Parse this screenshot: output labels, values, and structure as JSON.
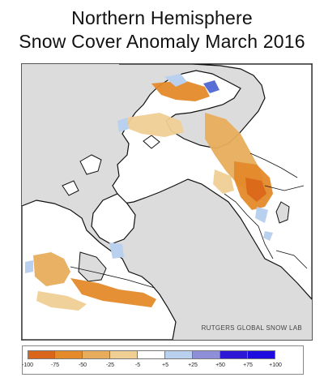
{
  "title_line1": "Northern Hemisphere",
  "title_line2": "Snow Cover Anomaly March 2016",
  "credit": "RUTGERS GLOBAL SNOW LAB",
  "legend": {
    "colors": [
      "#d9661a",
      "#e48a2a",
      "#e8ad5c",
      "#efcf93",
      "#ffffff",
      "#b9d0ee",
      "#8e8fd8",
      "#2d16d6",
      "#1d0be0"
    ],
    "tick_labels": [
      "-100",
      "-75",
      "-50",
      "-25",
      "-5",
      "+5",
      "+25",
      "+50",
      "+75",
      "+100"
    ]
  },
  "map_colors": {
    "background": "#dcdcdc",
    "land": "#ffffff",
    "coast": "#111111",
    "reduced_snow": "#e48a2a",
    "reduced_snow_light": "#efcf93",
    "increased_snow": "#b9d0ee",
    "increased_snow_strong": "#5a6fd6"
  }
}
